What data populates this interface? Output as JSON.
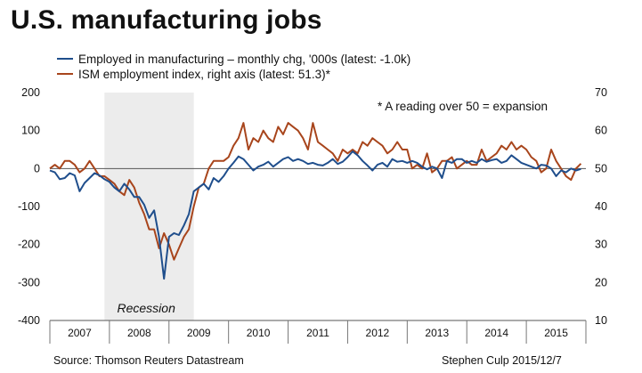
{
  "chart_data": {
    "type": "line",
    "title": "U.S. manufacturing jobs",
    "note": "* A reading over 50 = expansion",
    "shaded_region": {
      "label": "Recession",
      "start": 2007.917,
      "end": 2009.417,
      "color": "#ececec"
    },
    "left_axis": {
      "min": -400,
      "max": 200,
      "ticks": [
        "-400",
        "-300",
        "-200",
        "-100",
        "0",
        "100",
        "200"
      ]
    },
    "right_axis": {
      "min": 10,
      "max": 70,
      "ticks": [
        "10",
        "20",
        "30",
        "40",
        "50",
        "60",
        "70"
      ]
    },
    "x_axis": {
      "min": 2007.0,
      "max": 2016.0,
      "years": [
        "2007",
        "2008",
        "2009",
        "2010",
        "2011",
        "2012",
        "2013",
        "2014",
        "2015"
      ]
    },
    "zero_line": true,
    "legend_placement": "top-left",
    "series": [
      {
        "name": "Employed in manufacturing – monthly chg, '000s (latest: -1.0k)",
        "axis": "left",
        "color": "#1f4e8c",
        "start": 2007.0,
        "values": [
          -5,
          -10,
          -28,
          -25,
          -12,
          -18,
          -60,
          -38,
          -25,
          -12,
          -18,
          -28,
          -35,
          -50,
          -60,
          -40,
          -55,
          -75,
          -75,
          -95,
          -130,
          -110,
          -180,
          -290,
          -180,
          -170,
          -175,
          -150,
          -120,
          -60,
          -50,
          -40,
          -55,
          -25,
          -35,
          -20,
          0,
          15,
          32,
          25,
          10,
          -5,
          5,
          10,
          18,
          5,
          15,
          25,
          30,
          20,
          25,
          20,
          12,
          15,
          10,
          8,
          15,
          25,
          12,
          18,
          30,
          45,
          35,
          20,
          8,
          -5,
          10,
          15,
          5,
          25,
          18,
          20,
          15,
          20,
          15,
          5,
          -2,
          5,
          0,
          -25,
          20,
          15,
          25,
          25,
          15,
          20,
          15,
          25,
          18,
          22,
          25,
          15,
          20,
          35,
          25,
          15,
          10,
          5,
          0,
          10,
          8,
          0,
          -20,
          -5,
          -10,
          0,
          -5,
          -1
        ]
      },
      {
        "name": "ISM employment index, right axis (latest: 51.3)*",
        "axis": "right",
        "color": "#a8451c",
        "start": 2007.0,
        "values": [
          50,
          51,
          50,
          52,
          52,
          51,
          49,
          50,
          52,
          50,
          48,
          48,
          47,
          46,
          44,
          43,
          47,
          45,
          41,
          38,
          34,
          34,
          29,
          33,
          30,
          26,
          29,
          32,
          34,
          40,
          45,
          46,
          50,
          52,
          52,
          52,
          53,
          56,
          58,
          62,
          55,
          58,
          57,
          60,
          58,
          57,
          61,
          59,
          62,
          61,
          60,
          58,
          55,
          62,
          57,
          56,
          55,
          54,
          52,
          55,
          54,
          55,
          54,
          57,
          56,
          58,
          57,
          56,
          54,
          55,
          57,
          55,
          55,
          50,
          51,
          50,
          54,
          49,
          50,
          52,
          52,
          53,
          50,
          51,
          52,
          51,
          51,
          55,
          52,
          53,
          54,
          56,
          55,
          57,
          55,
          56,
          55,
          53,
          52,
          49,
          50,
          55,
          52,
          50,
          48,
          47,
          50,
          51.3
        ]
      }
    ]
  },
  "footer": {
    "source": "Source: Thomson Reuters Datastream",
    "credit": "Stephen Culp 2015/12/7"
  }
}
